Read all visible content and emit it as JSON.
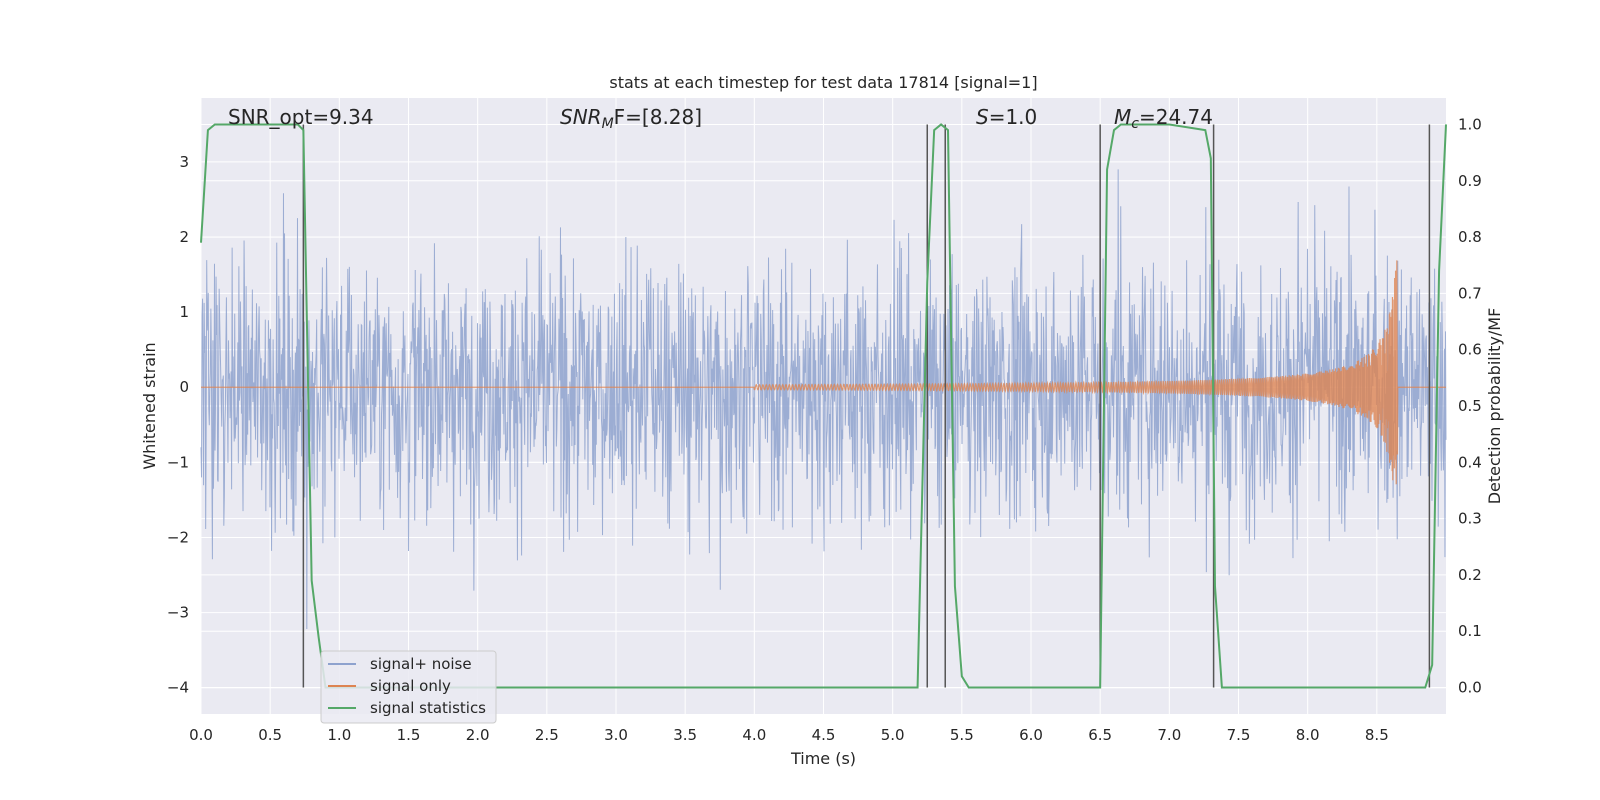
{
  "chart_data": {
    "type": "line",
    "title": "stats at each timestep for test data 17814 [signal=1]",
    "xlabel": "Time (s)",
    "ylabel": "Whitened strain",
    "y2label": "Detection probability/MF",
    "xlim": [
      0.0,
      9.0
    ],
    "ylim": [
      -4.35,
      3.85
    ],
    "y2lim": [
      -0.047,
      1.047
    ],
    "xticks": [
      "0.0",
      "0.5",
      "1.0",
      "1.5",
      "2.0",
      "2.5",
      "3.0",
      "3.5",
      "4.0",
      "4.5",
      "5.0",
      "5.5",
      "6.0",
      "6.5",
      "7.0",
      "7.5",
      "8.0",
      "8.5"
    ],
    "yticks": [
      "3",
      "2",
      "1",
      "0",
      "−1",
      "−2",
      "−3",
      "−4"
    ],
    "y2ticks": [
      "1.0",
      "0.9",
      "0.8",
      "0.7",
      "0.6",
      "0.5",
      "0.4",
      "0.3",
      "0.2",
      "0.1",
      "0.0"
    ],
    "grid": true,
    "legend_position": "lower-left",
    "annotations": {
      "snr_opt": "SNR_opt=9.34",
      "snr_mf_main": "SNR",
      "snr_mf_sub": "M",
      "snr_mf_rest": "F=[8.28]",
      "s_main": "S",
      "s_rest": "=1.0",
      "mc_main": "M",
      "mc_sub": "c",
      "mc_rest": "=24.74"
    },
    "series": [
      {
        "name": "signal+ noise",
        "color": "#8ea2ce",
        "kind": "whitened noise, amplitude about ±1.8 with peaks to about ±3.5"
      },
      {
        "name": "signal only",
        "color": "#dd8452",
        "kind": "chirp, growing from 0 to about ±2.0 at t≈8.65 then ending"
      },
      {
        "name": "signal statistics",
        "color": "#55a868",
        "axis": "right",
        "x": [
          0.0,
          0.05,
          0.1,
          0.2,
          0.3,
          0.4,
          0.5,
          0.6,
          0.7,
          0.74,
          0.8,
          0.85,
          0.9,
          0.95,
          1.0,
          2.0,
          3.0,
          4.0,
          5.0,
          5.18,
          5.25,
          5.3,
          5.35,
          5.4,
          5.45,
          5.5,
          5.55,
          5.6,
          6.0,
          6.45,
          6.5,
          6.55,
          6.6,
          6.65,
          7.0,
          7.26,
          7.3,
          7.33,
          7.38,
          7.42,
          7.5,
          8.0,
          8.5,
          8.85,
          8.9,
          8.95,
          9.0
        ],
        "y": [
          0.79,
          0.99,
          1.0,
          1.0,
          1.0,
          1.0,
          1.0,
          1.0,
          1.0,
          0.99,
          0.19,
          0.09,
          0.0,
          0.0,
          0.0,
          0.0,
          0.0,
          0.0,
          0.0,
          0.0,
          0.72,
          0.99,
          1.0,
          0.99,
          0.18,
          0.02,
          0.0,
          0.0,
          0.0,
          0.0,
          0.0,
          0.92,
          0.99,
          1.0,
          1.0,
          0.99,
          0.94,
          0.18,
          0.0,
          0.0,
          0.0,
          0.0,
          0.0,
          0.0,
          0.04,
          0.74,
          1.0
        ]
      }
    ],
    "vlines_x": [
      0.74,
      5.25,
      5.38,
      6.5,
      7.32,
      8.88
    ]
  },
  "legend": {
    "items": [
      "signal+ noise",
      "signal only",
      "signal statistics"
    ]
  }
}
